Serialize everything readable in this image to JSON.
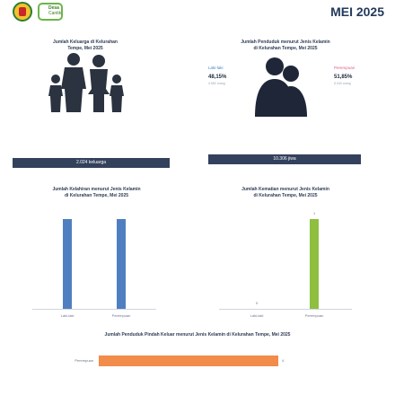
{
  "header": {
    "logo_text_1": "Desa",
    "logo_text_2": "Cantik",
    "period": "MEI 2025"
  },
  "families": {
    "title_line1": "Jumlah Keluarga di Kelurahan",
    "title_line2": "Tempe, Mei 2025",
    "icon": "family-icon",
    "total_label": "2.024 keluarga"
  },
  "population": {
    "title_line1": "Jumlah Penduduk menurut Jenis Kelamin",
    "title_line2": "di Kelurahan Tempe, Mei 2025",
    "male_label": "Laki-laki",
    "male_pct": "48,15%",
    "male_count": "4.962 orang",
    "female_label": "Perempuan",
    "female_pct": "51,85%",
    "female_count": "5.344 orang",
    "icon": "couple-silhouette-icon",
    "total_label": "10.306 jiwa",
    "colors": {
      "male": "#4f7fc0",
      "female": "#e05e8a",
      "dark": "#33415c"
    }
  },
  "births": {
    "title_line1": "Jumlah Kelahiran menurut Jenis Kelamin",
    "title_line2": "di Kelurahan Tempe, Mei 2025",
    "color": "#4f7fc0"
  },
  "deaths": {
    "title_line1": "Jumlah Kematian menurut Jenis Kelamin",
    "title_line2": "di Kelurahan Tempe, Mei 2025",
    "color": "#8fbf3f"
  },
  "migration": {
    "title": "Jumlah Penduduk Pindah Keluar menurut Jenis Kelamin di Kelurahan Tempe, Mei 2025",
    "color": "#f28c4a"
  },
  "chart_data": [
    {
      "type": "bar",
      "categories": [
        "Laki-laki",
        "Perempuan"
      ],
      "values": [
        9,
        9
      ],
      "ylim": [
        0,
        9
      ]
    },
    {
      "type": "bar",
      "categories": [
        "Laki-laki",
        "Perempuan"
      ],
      "values": [
        0,
        1
      ],
      "data_labels": [
        "0",
        "1"
      ],
      "ylim": [
        0,
        1
      ]
    },
    {
      "type": "bar",
      "orientation": "horizontal",
      "categories": [
        "Perempuan"
      ],
      "values": [
        4
      ],
      "data_labels": [
        "4"
      ],
      "xlim": [
        0,
        4
      ]
    }
  ]
}
